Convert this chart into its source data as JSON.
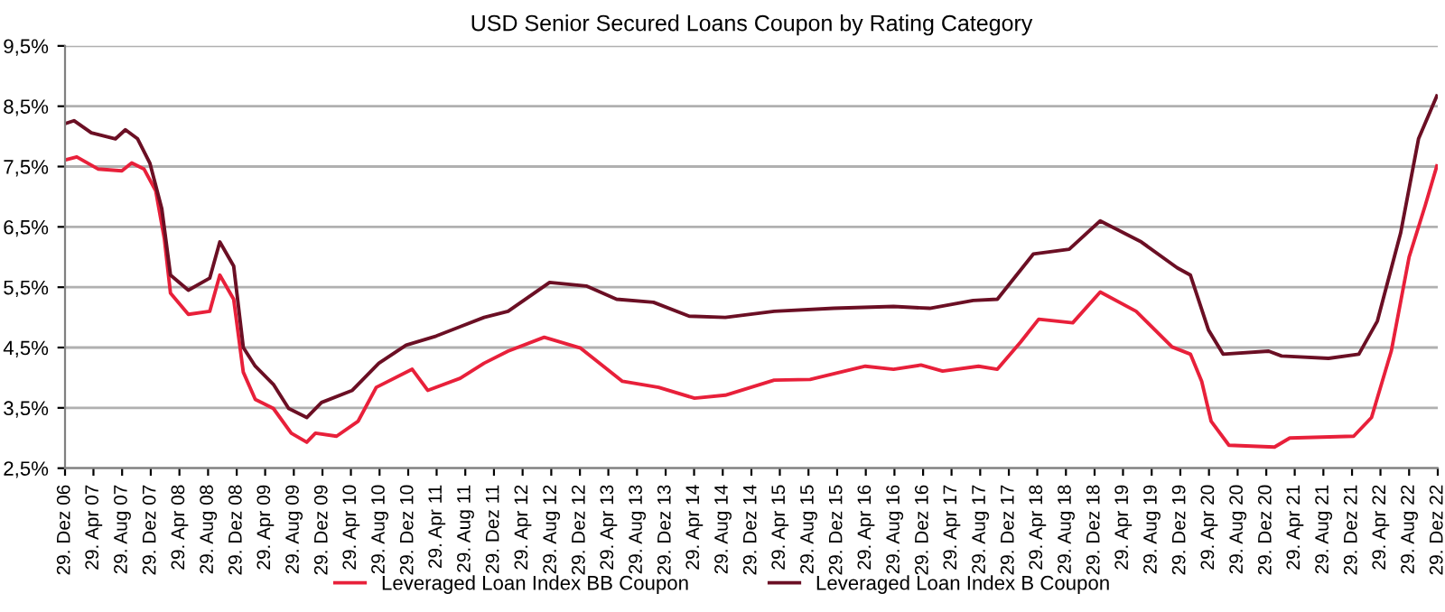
{
  "chart_data": {
    "type": "line",
    "title": "USD Senior Secured Loans Coupon by Rating Category",
    "xlim": [
      "2006-12-29",
      "2022-12-29"
    ],
    "xticks": [
      {
        "value": "2006-12-29",
        "label": "29. Dez 06"
      },
      {
        "value": "2007-04-29",
        "label": "29. Apr 07"
      },
      {
        "value": "2007-08-29",
        "label": "29. Aug 07"
      },
      {
        "value": "2007-12-29",
        "label": "29. Dez 07"
      },
      {
        "value": "2008-04-29",
        "label": "29. Apr 08"
      },
      {
        "value": "2008-08-29",
        "label": "29. Aug 08"
      },
      {
        "value": "2008-12-29",
        "label": "29. Dez 08"
      },
      {
        "value": "2009-04-29",
        "label": "29. Apr 09"
      },
      {
        "value": "2009-08-29",
        "label": "29. Aug 09"
      },
      {
        "value": "2009-12-29",
        "label": "29. Dez 09"
      },
      {
        "value": "2010-04-29",
        "label": "29. Apr 10"
      },
      {
        "value": "2010-08-29",
        "label": "29. Aug 10"
      },
      {
        "value": "2010-12-29",
        "label": "29. Dez 10"
      },
      {
        "value": "2011-04-29",
        "label": "29. Apr 11"
      },
      {
        "value": "2011-08-29",
        "label": "29. Aug 11"
      },
      {
        "value": "2011-12-29",
        "label": "29. Dez 11"
      },
      {
        "value": "2012-04-29",
        "label": "29. Apr 12"
      },
      {
        "value": "2012-08-29",
        "label": "29. Aug 12"
      },
      {
        "value": "2012-12-29",
        "label": "29. Dez 12"
      },
      {
        "value": "2013-04-29",
        "label": "29. Apr 13"
      },
      {
        "value": "2013-08-29",
        "label": "29. Aug 13"
      },
      {
        "value": "2013-12-29",
        "label": "29. Dez 13"
      },
      {
        "value": "2014-04-29",
        "label": "29. Apr 14"
      },
      {
        "value": "2014-08-29",
        "label": "29. Aug 14"
      },
      {
        "value": "2014-12-29",
        "label": "29. Dez 14"
      },
      {
        "value": "2015-04-29",
        "label": "29. Apr 15"
      },
      {
        "value": "2015-08-29",
        "label": "29. Aug 15"
      },
      {
        "value": "2015-12-29",
        "label": "29. Dez 15"
      },
      {
        "value": "2016-04-29",
        "label": "29. Apr 16"
      },
      {
        "value": "2016-08-29",
        "label": "29. Aug 16"
      },
      {
        "value": "2016-12-29",
        "label": "29. Dez 16"
      },
      {
        "value": "2017-04-29",
        "label": "29. Apr 17"
      },
      {
        "value": "2017-08-29",
        "label": "29. Aug 17"
      },
      {
        "value": "2017-12-29",
        "label": "29. Dez 17"
      },
      {
        "value": "2018-04-29",
        "label": "29. Apr 18"
      },
      {
        "value": "2018-08-29",
        "label": "29. Aug 18"
      },
      {
        "value": "2018-12-29",
        "label": "29. Dez 18"
      },
      {
        "value": "2019-04-29",
        "label": "29. Apr 19"
      },
      {
        "value": "2019-08-29",
        "label": "29. Aug 19"
      },
      {
        "value": "2019-12-29",
        "label": "29. Dez 19"
      },
      {
        "value": "2020-04-29",
        "label": "29. Apr 20"
      },
      {
        "value": "2020-08-29",
        "label": "29. Aug 20"
      },
      {
        "value": "2020-12-29",
        "label": "29. Dez 20"
      },
      {
        "value": "2021-04-29",
        "label": "29. Apr 21"
      },
      {
        "value": "2021-08-29",
        "label": "29. Aug 21"
      },
      {
        "value": "2021-12-29",
        "label": "29. Dez 21"
      },
      {
        "value": "2022-04-29",
        "label": "29. Apr 22"
      },
      {
        "value": "2022-08-29",
        "label": "29. Aug 22"
      },
      {
        "value": "2022-12-29",
        "label": "29. Dez 22"
      }
    ],
    "ylim": [
      2.5,
      9.5
    ],
    "yticks": [
      {
        "value": 2.5,
        "label": "2,5%"
      },
      {
        "value": 3.5,
        "label": "3,5%"
      },
      {
        "value": 4.5,
        "label": "4,5%"
      },
      {
        "value": 5.5,
        "label": "5,5%"
      },
      {
        "value": 6.5,
        "label": "6,5%"
      },
      {
        "value": 7.5,
        "label": "7,5%"
      },
      {
        "value": 8.5,
        "label": "8,5%"
      },
      {
        "value": 9.5,
        "label": "9,5%"
      }
    ],
    "grid": "y",
    "legend": "bottom",
    "marker": "none",
    "line_style": "solid",
    "series": [
      {
        "name": "Leveraged Loan Index BB Coupon",
        "color": "#e8203a",
        "x": [
          "2006-12-29",
          "2007-02-17",
          "2007-05-18",
          "2007-08-28",
          "2007-10-09",
          "2007-11-30",
          "2008-01-19",
          "2008-02-25",
          "2008-03-22",
          "2008-06-06",
          "2008-09-05",
          "2008-10-18",
          "2008-12-16",
          "2009-01-26",
          "2009-03-18",
          "2009-06-03",
          "2009-08-18",
          "2009-10-23",
          "2009-11-29",
          "2010-02-27",
          "2010-05-30",
          "2010-08-15",
          "2011-01-15",
          "2011-03-22",
          "2011-08-07",
          "2011-11-17",
          "2012-02-27",
          "2012-07-30",
          "2013-01-01",
          "2013-06-28",
          "2013-11-29",
          "2014-05-01",
          "2014-09-09",
          "2015-04-05",
          "2015-09-05",
          "2016-04-27",
          "2016-08-25",
          "2016-12-20",
          "2017-03-22",
          "2017-08-22",
          "2017-11-10",
          "2018-02-17",
          "2018-05-05",
          "2018-09-27",
          "2019-01-22",
          "2019-06-24",
          "2019-11-24",
          "2020-02-10",
          "2020-03-29",
          "2020-05-08",
          "2020-07-23",
          "2021-02-02",
          "2021-04-08",
          "2022-01-05",
          "2022-03-22",
          "2022-06-14",
          "2022-08-29",
          "2022-11-06",
          "2022-12-25"
        ],
        "values": [
          7.61,
          7.66,
          7.46,
          7.43,
          7.56,
          7.46,
          7.1,
          6.3,
          5.4,
          5.05,
          5.1,
          5.7,
          5.3,
          4.09,
          3.64,
          3.49,
          3.08,
          2.93,
          3.08,
          3.03,
          3.28,
          3.84,
          4.14,
          3.79,
          3.99,
          4.24,
          4.44,
          4.67,
          4.49,
          3.94,
          3.84,
          3.66,
          3.71,
          3.96,
          3.97,
          4.19,
          4.14,
          4.21,
          4.11,
          4.19,
          4.14,
          4.59,
          4.97,
          4.91,
          5.42,
          5.1,
          4.51,
          4.39,
          3.94,
          3.28,
          2.88,
          2.85,
          3.0,
          3.03,
          3.34,
          4.44,
          6.0,
          6.86,
          7.51
        ]
      },
      {
        "name": "Leveraged Loan Index B Coupon",
        "color": "#6b0f24",
        "x": [
          "2006-12-29",
          "2007-02-05",
          "2007-04-20",
          "2007-08-01",
          "2007-09-12",
          "2007-11-03",
          "2007-12-25",
          "2008-02-14",
          "2008-03-22",
          "2008-06-06",
          "2008-09-05",
          "2008-10-18",
          "2008-12-16",
          "2009-01-26",
          "2009-03-18",
          "2009-06-03",
          "2009-08-07",
          "2009-10-23",
          "2009-12-25",
          "2010-05-05",
          "2010-08-26",
          "2010-12-20",
          "2011-04-27",
          "2011-11-17",
          "2012-02-27",
          "2012-08-22",
          "2013-01-25",
          "2013-06-03",
          "2013-11-07",
          "2014-04-08",
          "2014-09-09",
          "2015-04-05",
          "2015-12-15",
          "2016-08-25",
          "2017-01-26",
          "2017-07-30",
          "2017-11-10",
          "2018-04-12",
          "2018-09-12",
          "2019-01-22",
          "2019-07-16",
          "2019-12-16",
          "2020-02-10",
          "2020-04-27",
          "2020-06-28",
          "2021-01-08",
          "2021-03-04",
          "2021-09-20",
          "2022-01-27",
          "2022-04-16",
          "2022-07-24",
          "2022-10-08",
          "2022-12-25"
        ],
        "values": [
          8.21,
          8.26,
          8.06,
          7.96,
          8.11,
          7.96,
          7.56,
          6.8,
          5.7,
          5.45,
          5.65,
          6.25,
          5.85,
          4.5,
          4.19,
          3.89,
          3.49,
          3.34,
          3.59,
          3.79,
          4.24,
          4.54,
          4.69,
          5.0,
          5.1,
          5.58,
          5.52,
          5.3,
          5.25,
          5.02,
          5.0,
          5.1,
          5.15,
          5.18,
          5.15,
          5.28,
          5.3,
          6.05,
          6.13,
          6.6,
          6.25,
          5.82,
          5.7,
          4.79,
          4.39,
          4.44,
          4.36,
          4.32,
          4.39,
          4.94,
          6.4,
          7.96,
          8.67
        ]
      }
    ]
  }
}
